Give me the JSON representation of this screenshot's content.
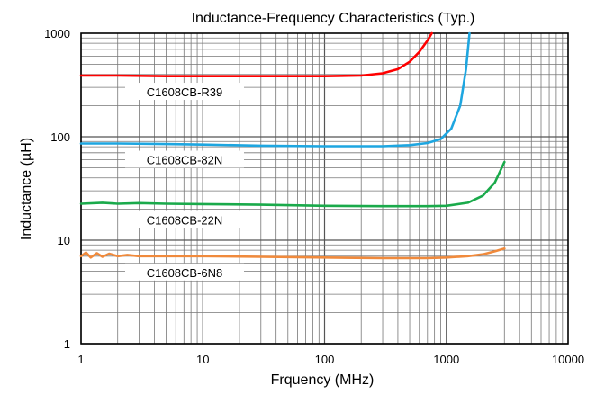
{
  "chart_data": {
    "type": "line",
    "title": "Inductance-Frequency Characteristics (Typ.)",
    "xlabel": "Frquency (MHz)",
    "ylabel": "Inductance (µH)",
    "x_scale": "log",
    "y_scale": "log",
    "xlim": [
      1,
      10000
    ],
    "ylim": [
      1,
      1000
    ],
    "x_ticks": [
      "1",
      "10",
      "100",
      "1000",
      "10000"
    ],
    "y_ticks": [
      "1",
      "10",
      "100",
      "1000"
    ],
    "grid": true,
    "series": [
      {
        "name": "C1608CB-R39",
        "color": "#ff0000",
        "points": [
          [
            1,
            390
          ],
          [
            2,
            390
          ],
          [
            5,
            385
          ],
          [
            10,
            385
          ],
          [
            30,
            385
          ],
          [
            100,
            385
          ],
          [
            200,
            390
          ],
          [
            300,
            410
          ],
          [
            400,
            450
          ],
          [
            500,
            530
          ],
          [
            600,
            660
          ],
          [
            700,
            850
          ],
          [
            760,
            1000
          ]
        ]
      },
      {
        "name": "C1608CB-82N",
        "color": "#1ea6e0",
        "points": [
          [
            1,
            86
          ],
          [
            2,
            86
          ],
          [
            5,
            85
          ],
          [
            10,
            84
          ],
          [
            30,
            82
          ],
          [
            100,
            81
          ],
          [
            300,
            81
          ],
          [
            500,
            83
          ],
          [
            700,
            87
          ],
          [
            900,
            95
          ],
          [
            1100,
            120
          ],
          [
            1300,
            200
          ],
          [
            1450,
            450
          ],
          [
            1550,
            1000
          ]
        ]
      },
      {
        "name": "C1608CB-22N",
        "color": "#1aaa4b",
        "points": [
          [
            1,
            22.5
          ],
          [
            1.5,
            23
          ],
          [
            2,
            22.5
          ],
          [
            3,
            22.8
          ],
          [
            5,
            22.5
          ],
          [
            10,
            22.3
          ],
          [
            30,
            22
          ],
          [
            100,
            21.5
          ],
          [
            300,
            21.3
          ],
          [
            700,
            21.3
          ],
          [
            1000,
            21.5
          ],
          [
            1500,
            23
          ],
          [
            2000,
            27
          ],
          [
            2500,
            36
          ],
          [
            3000,
            57
          ]
        ]
      },
      {
        "name": "C1608CB-6N8",
        "color": "#f08a3c",
        "points": [
          [
            1,
            7.0
          ],
          [
            1.1,
            7.6
          ],
          [
            1.2,
            6.8
          ],
          [
            1.35,
            7.5
          ],
          [
            1.5,
            6.9
          ],
          [
            1.7,
            7.4
          ],
          [
            2,
            7.0
          ],
          [
            2.4,
            7.2
          ],
          [
            3,
            7.0
          ],
          [
            5,
            7.0
          ],
          [
            10,
            7.0
          ],
          [
            30,
            6.9
          ],
          [
            100,
            6.8
          ],
          [
            300,
            6.7
          ],
          [
            700,
            6.7
          ],
          [
            1000,
            6.8
          ],
          [
            1500,
            7.0
          ],
          [
            2000,
            7.3
          ],
          [
            2500,
            7.8
          ],
          [
            3000,
            8.3
          ]
        ]
      }
    ],
    "annotations": [
      {
        "text": "C1608CB-R39",
        "series": 0
      },
      {
        "text": "C1608CB-82N",
        "series": 1
      },
      {
        "text": "C1608CB-22N",
        "series": 2
      },
      {
        "text": "C1608CB-6N8",
        "series": 3
      }
    ]
  }
}
